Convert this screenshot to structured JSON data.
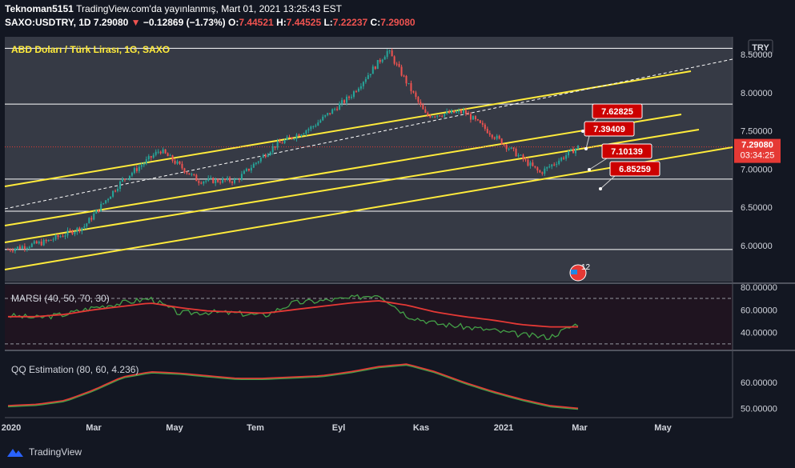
{
  "header": {
    "publisher": "Teknoman5151",
    "published_text": "TradingView.com'da yayınlanmış, Mart 01, 2021 13:25:43 EST",
    "symbol": "SAXO:USDTRY, 1D",
    "last": "7.29080",
    "change_arrow": "▼",
    "change": "−0.12869 (−1.73%)",
    "o_label": "O:",
    "o_value": "7.44521",
    "h_label": "H:",
    "h_value": "7.44525",
    "l_label": "L:",
    "l_value": "7.22237",
    "c_label": "C:",
    "c_value": "7.29080"
  },
  "currency_badge": "TRY",
  "footer": {
    "brand": "TradingView"
  },
  "colors": {
    "background": "#131722",
    "main_pane": "#363a45",
    "rsi_pane": "#1f1420",
    "qq_pane": "#131722",
    "channel": "#ffeb3b",
    "price_red": "#e53935",
    "up_candle": "#26a69a",
    "down_candle": "#ef5350",
    "rsi_line": "#43a047",
    "rsi_ma": "#e53935"
  },
  "chart_data": [
    {
      "type": "candlestick",
      "title": "ABD Doları / Türk Lirası, 1G, SAXO",
      "x_tick_labels": [
        "2020",
        "Mar",
        "May",
        "Tem",
        "Eyl",
        "Kas",
        "2021",
        "Mar",
        "May"
      ],
      "y_tick_labels": [
        "8.50000",
        "8.00000",
        "7.50000",
        "7.00000",
        "6.50000",
        "6.00000"
      ],
      "ylim": [
        5.53,
        8.73
      ],
      "current_price_label": "7.29080",
      "countdown_label": "03:34:25",
      "approx_close_path": [
        [
          "2020-01",
          5.95
        ],
        [
          "2020-02",
          6.05
        ],
        [
          "2020-03",
          6.25
        ],
        [
          "2020-04",
          6.85
        ],
        [
          "2020-05",
          7.25
        ],
        [
          "2020-06",
          6.85
        ],
        [
          "2020-07",
          6.85
        ],
        [
          "2020-08",
          7.3
        ],
        [
          "2020-09",
          7.55
        ],
        [
          "2020-10",
          7.95
        ],
        [
          "2020-11",
          8.55
        ],
        [
          "2020-11",
          7.7
        ],
        [
          "2020-12",
          7.75
        ],
        [
          "2021-01",
          7.35
        ],
        [
          "2021-02",
          6.95
        ],
        [
          "2021-03",
          7.29
        ]
      ],
      "horizontal_levels": [
        8.58,
        7.85,
        7.29,
        6.87,
        6.45,
        5.95
      ],
      "annotations": [
        "7.62825",
        "7.39409",
        "7.10139",
        "6.85259"
      ],
      "badge": "12"
    },
    {
      "type": "line",
      "title": "MARSI (40, 50, 70, 30)",
      "y_tick_labels": [
        "80.00000",
        "60.00000",
        "40.00000"
      ],
      "ylim": [
        25,
        82
      ],
      "levels": [
        70,
        30
      ],
      "series": [
        {
          "values": [
            55,
            53,
            56,
            62,
            66,
            70,
            57,
            58,
            57,
            55,
            66,
            68,
            70,
            74,
            55,
            48,
            45,
            42,
            38,
            36,
            48
          ]
        },
        {
          "values": [
            54,
            54,
            56,
            60,
            63,
            66,
            62,
            59,
            58,
            57,
            60,
            63,
            66,
            68,
            64,
            58,
            54,
            51,
            47,
            45,
            45
          ]
        }
      ]
    },
    {
      "type": "line",
      "title": "QQ Estimation (80, 60, 4.236)",
      "y_tick_labels": [
        "60.00000",
        "50.00000"
      ],
      "ylim": [
        47,
        71
      ],
      "series": [
        {
          "values": [
            51,
            51.5,
            53,
            57,
            62,
            64,
            63.5,
            62.5,
            61.5,
            61.5,
            62,
            62.5,
            64,
            66,
            67,
            64,
            60,
            56.5,
            53.5,
            51,
            50
          ]
        }
      ]
    }
  ]
}
